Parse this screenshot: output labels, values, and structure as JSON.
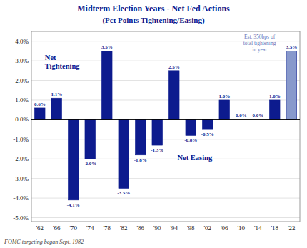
{
  "chart_data": {
    "type": "bar",
    "title": "Midterm Election Years - Net Fed Actions",
    "subtitle": "(Pct Points Tightening/Easing)",
    "categories": [
      "'62",
      "'66",
      "'70",
      "'74",
      "'78",
      "'82",
      "'86",
      "'90",
      "'94",
      "'98",
      "'02",
      "'06",
      "'10",
      "'14",
      "'18",
      "'22"
    ],
    "values": [
      0.6,
      1.1,
      -4.1,
      -2.0,
      3.5,
      -3.5,
      -1.8,
      -1.3,
      2.5,
      -0.8,
      -0.5,
      1.0,
      0.0,
      0.0,
      1.0,
      3.5
    ],
    "value_labels": [
      "0.6%",
      "1.1%",
      "-4.1%",
      "-2.0%",
      "3.5%",
      "-3.5%",
      "-1.8%",
      "-1.3%",
      "2.5%",
      "-0.8%",
      "-0.5%",
      "1.0%",
      "0.0%",
      "0.0%",
      "1.0%",
      "3.5%"
    ],
    "data_labels": true,
    "color": "#0d1b8e",
    "colors": [
      "#0d1b8e",
      "#0d1b8e",
      "#0d1b8e",
      "#0d1b8e",
      "#0d1b8e",
      "#0d1b8e",
      "#0d1b8e",
      "#0d1b8e",
      "#0d1b8e",
      "#0d1b8e",
      "#0d1b8e",
      "#0d1b8e",
      "#0d1b8e",
      "#0d1b8e",
      "#0d1b8e",
      "#8899cc"
    ],
    "ylim": [
      -5.2,
      4.5
    ],
    "yticks": [
      {
        "value": -5.0,
        "label": "-5.0%"
      },
      {
        "value": -4.0,
        "label": "-4.0%"
      },
      {
        "value": -3.0,
        "label": "-3.0%"
      },
      {
        "value": -2.0,
        "label": "-2.0%"
      },
      {
        "value": -1.0,
        "label": "-1.0%"
      },
      {
        "value": 0.0,
        "label": "0.0%"
      },
      {
        "value": 1.0,
        "label": "1.0%"
      },
      {
        "value": 2.0,
        "label": "2.0%"
      },
      {
        "value": 3.0,
        "label": "3.0%"
      },
      {
        "value": 4.0,
        "label": "4.0%"
      }
    ],
    "grid": true,
    "annotations": [
      "Net\nTightening",
      "Net Easing",
      "Est. 350bps of\ntotal tightening\nin year"
    ],
    "footnote": "FOMC targeting began Sept. 1982"
  }
}
